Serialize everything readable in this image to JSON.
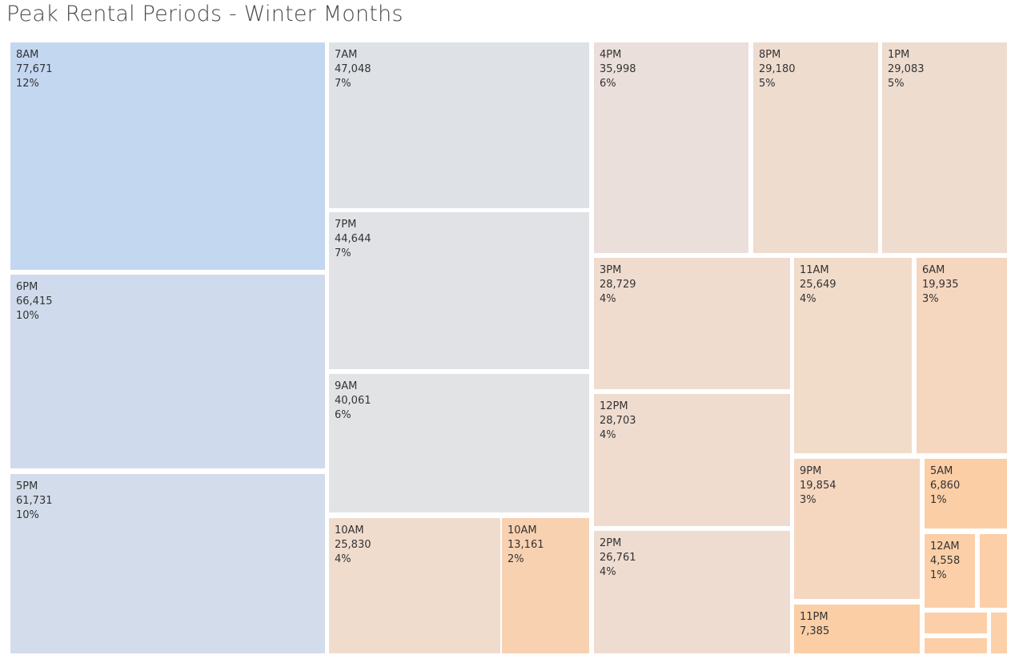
{
  "title": "Peak Rental Periods - Winter Months",
  "chart_data": {
    "type": "treemap",
    "title": "Peak Rental Periods - Winter Months",
    "items": [
      {
        "label": "8AM",
        "value": 77671,
        "percent": "12%",
        "value_text": "77,671",
        "color": "#c3d7f1"
      },
      {
        "label": "6PM",
        "value": 66415,
        "percent": "10%",
        "value_text": "66,415",
        "color": "#cfdbec"
      },
      {
        "label": "5PM",
        "value": 61731,
        "percent": "10%",
        "value_text": "61,731",
        "color": "#d2dcea"
      },
      {
        "label": "7AM",
        "value": 47048,
        "percent": "7%",
        "value_text": "47,048",
        "color": "#dee1e6"
      },
      {
        "label": "7PM",
        "value": 44644,
        "percent": "7%",
        "value_text": "44,644",
        "color": "#e0e2e5"
      },
      {
        "label": "9AM",
        "value": 40061,
        "percent": "6%",
        "value_text": "40,061",
        "color": "#e2e3e4"
      },
      {
        "label": "10AM",
        "value": 25830,
        "percent": "4%",
        "value_text": "25,830",
        "color": "#f0dccd"
      },
      {
        "label": "10AM",
        "value": 13161,
        "percent": "2%",
        "value_text": "13,161",
        "color": "#f8d1b1"
      },
      {
        "label": "4PM",
        "value": 35998,
        "percent": "6%",
        "value_text": "35,998",
        "color": "#eadfda"
      },
      {
        "label": "8PM",
        "value": 29180,
        "percent": "5%",
        "value_text": "29,180",
        "color": "#eedccf"
      },
      {
        "label": "1PM",
        "value": 29083,
        "percent": "5%",
        "value_text": "29,083",
        "color": "#eedccf"
      },
      {
        "label": "3PM",
        "value": 28729,
        "percent": "4%",
        "value_text": "28,729",
        "color": "#efdccf"
      },
      {
        "label": "12PM",
        "value": 28703,
        "percent": "4%",
        "value_text": "28,703",
        "color": "#efdccf"
      },
      {
        "label": "2PM",
        "value": 26761,
        "percent": "4%",
        "value_text": "26,761",
        "color": "#efdcd0"
      },
      {
        "label": "11AM",
        "value": 25649,
        "percent": "4%",
        "value_text": "25,649",
        "color": "#f1dbc9"
      },
      {
        "label": "6AM",
        "value": 19935,
        "percent": "3%",
        "value_text": "19,935",
        "color": "#f5d6bf"
      },
      {
        "label": "9PM",
        "value": 19854,
        "percent": "3%",
        "value_text": "19,854",
        "color": "#f5d6bf"
      },
      {
        "label": "11PM",
        "value": 7385,
        "percent": "",
        "value_text": "7,385",
        "color": "#fbcea6"
      },
      {
        "label": "5AM",
        "value": 6860,
        "percent": "1%",
        "value_text": "6,860",
        "color": "#fbcea6"
      },
      {
        "label": "12AM",
        "value": 4558,
        "percent": "1%",
        "value_text": "4,558",
        "color": "#fccfa8"
      },
      {
        "label": "",
        "value": null,
        "percent": "",
        "value_text": "",
        "color": "#fccfa8"
      },
      {
        "label": "",
        "value": null,
        "percent": "",
        "value_text": "",
        "color": "#fccfa8"
      },
      {
        "label": "",
        "value": null,
        "percent": "",
        "value_text": "",
        "color": "#fccfa8"
      },
      {
        "label": "",
        "value": null,
        "percent": "",
        "value_text": "",
        "color": "#fcd0a9"
      }
    ]
  }
}
